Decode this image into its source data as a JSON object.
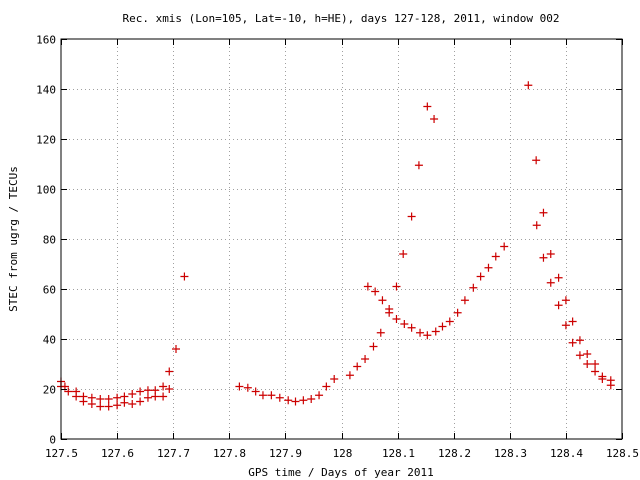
{
  "chart_data": {
    "type": "scatter",
    "title": "Rec. xmis (Lon=105, Lat=-10, h=HE), days 127-128, 2011, window 002",
    "xlabel": "GPS time / Days of year 2011",
    "ylabel": "STEC from ugrg / TECUs",
    "xlim": [
      127.5,
      128.5
    ],
    "ylim": [
      0,
      160
    ],
    "grid": true,
    "marker": "+",
    "color": "#cc0000",
    "x_ticks": [
      127.5,
      127.6,
      127.7,
      127.8,
      127.9,
      128.0,
      128.1,
      128.2,
      128.3,
      128.4,
      128.5
    ],
    "x_tick_labels": [
      "127.5",
      "127.6",
      "127.7",
      "127.8",
      "127.9",
      "128",
      "128.1",
      "128.2",
      "128.3",
      "128.4",
      "128.5"
    ],
    "y_ticks": [
      0,
      20,
      40,
      60,
      80,
      100,
      120,
      140,
      160
    ],
    "y_tick_labels": [
      "0",
      "20",
      "40",
      "60",
      "80",
      "100",
      "120",
      "140",
      "160"
    ],
    "points": [
      [
        127.5,
        23.0
      ],
      [
        127.5,
        21.0
      ],
      [
        127.507,
        21.0
      ],
      [
        127.513,
        19.0
      ],
      [
        127.527,
        19.0
      ],
      [
        127.527,
        17.0
      ],
      [
        127.54,
        17.0
      ],
      [
        127.54,
        15.0
      ],
      [
        127.555,
        16.5
      ],
      [
        127.555,
        14.0
      ],
      [
        127.57,
        16.0
      ],
      [
        127.57,
        13.0
      ],
      [
        127.585,
        16.0
      ],
      [
        127.585,
        13.0
      ],
      [
        127.6,
        16.5
      ],
      [
        127.6,
        13.5
      ],
      [
        127.613,
        17.0
      ],
      [
        127.613,
        14.5
      ],
      [
        127.627,
        18.0
      ],
      [
        127.627,
        14.0
      ],
      [
        127.641,
        19.0
      ],
      [
        127.641,
        15.0
      ],
      [
        127.655,
        19.5
      ],
      [
        127.655,
        16.5
      ],
      [
        127.668,
        19.5
      ],
      [
        127.668,
        17.0
      ],
      [
        127.682,
        21.0
      ],
      [
        127.682,
        17.0
      ],
      [
        127.693,
        20.0
      ],
      [
        127.693,
        27.0
      ],
      [
        127.705,
        36.0
      ],
      [
        127.72,
        65.0
      ],
      [
        127.818,
        21.0
      ],
      [
        127.833,
        20.5
      ],
      [
        127.847,
        19.0
      ],
      [
        127.86,
        17.5
      ],
      [
        127.875,
        17.5
      ],
      [
        127.89,
        16.5
      ],
      [
        127.905,
        15.5
      ],
      [
        127.918,
        15.0
      ],
      [
        127.932,
        15.5
      ],
      [
        127.946,
        16.0
      ],
      [
        127.96,
        17.5
      ],
      [
        127.973,
        21.0
      ],
      [
        127.987,
        24.0
      ],
      [
        128.015,
        25.5
      ],
      [
        128.028,
        29.0
      ],
      [
        128.042,
        32.0
      ],
      [
        128.047,
        61.0
      ],
      [
        128.057,
        37.0
      ],
      [
        128.06,
        59.0
      ],
      [
        128.07,
        42.5
      ],
      [
        128.073,
        55.5
      ],
      [
        128.085,
        52.0
      ],
      [
        128.085,
        50.5
      ],
      [
        128.098,
        61.0
      ],
      [
        128.098,
        48.0
      ],
      [
        128.11,
        74.0
      ],
      [
        128.112,
        46.0
      ],
      [
        128.125,
        89.0
      ],
      [
        128.125,
        44.5
      ],
      [
        128.138,
        109.5
      ],
      [
        128.14,
        42.5
      ],
      [
        128.153,
        133.0
      ],
      [
        128.153,
        41.5
      ],
      [
        128.165,
        128.0
      ],
      [
        128.168,
        43.0
      ],
      [
        128.18,
        45.0
      ],
      [
        128.193,
        47.0
      ],
      [
        128.207,
        50.5
      ],
      [
        128.22,
        55.5
      ],
      [
        128.235,
        60.5
      ],
      [
        128.248,
        65.0
      ],
      [
        128.262,
        68.5
      ],
      [
        128.275,
        73.0
      ],
      [
        128.29,
        77.0
      ],
      [
        128.333,
        141.5
      ],
      [
        128.347,
        111.5
      ],
      [
        128.348,
        85.5
      ],
      [
        128.36,
        90.5
      ],
      [
        128.36,
        72.5
      ],
      [
        128.373,
        74.0
      ],
      [
        128.373,
        62.5
      ],
      [
        128.387,
        64.5
      ],
      [
        128.387,
        53.5
      ],
      [
        128.4,
        55.5
      ],
      [
        128.4,
        45.5
      ],
      [
        128.412,
        47.0
      ],
      [
        128.412,
        38.5
      ],
      [
        128.425,
        39.5
      ],
      [
        128.425,
        33.5
      ],
      [
        128.438,
        34.0
      ],
      [
        128.438,
        30.0
      ],
      [
        128.452,
        30.0
      ],
      [
        128.452,
        27.0
      ],
      [
        128.465,
        25.0
      ],
      [
        128.465,
        24.0
      ],
      [
        128.48,
        23.5
      ],
      [
        128.48,
        21.5
      ]
    ]
  }
}
